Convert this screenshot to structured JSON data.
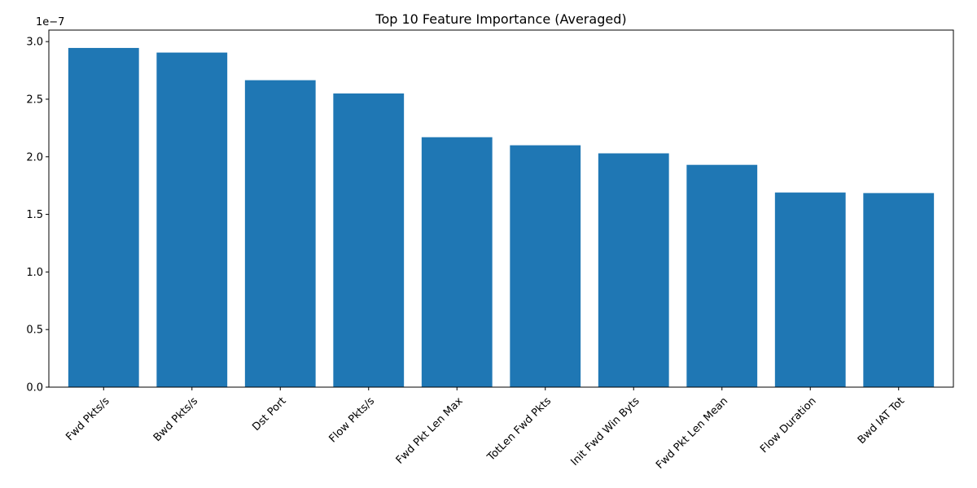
{
  "chart_data": {
    "type": "bar",
    "title": "Top 10 Feature Importance (Averaged)",
    "xlabel": "",
    "ylabel": "",
    "categories": [
      "Fwd Pkts/s",
      "Bwd Pkts/s",
      "Dst Port",
      "Flow Pkts/s",
      "Fwd Pkt Len Max",
      "TotLen Fwd Pkts",
      "Init Fwd Win Byts",
      "Fwd Pkt Len Mean",
      "Flow Duration",
      "Bwd IAT Tot"
    ],
    "values": [
      2.945e-07,
      2.905e-07,
      2.665e-07,
      2.55e-07,
      2.17e-07,
      2.1e-07,
      2.03e-07,
      1.93e-07,
      1.69e-07,
      1.685e-07
    ],
    "ylim": [
      0,
      3.1e-07
    ],
    "yticks": [
      "0.0",
      "0.5",
      "1.0",
      "1.5",
      "2.0",
      "2.5",
      "3.0"
    ],
    "y_tick_values": [
      0,
      5e-08,
      1e-07,
      1.5e-07,
      2e-07,
      2.5e-07,
      3e-07
    ],
    "y_scale_label": "1e−7",
    "bar_color": "#1f77b4",
    "grid": false,
    "legend": "none"
  }
}
